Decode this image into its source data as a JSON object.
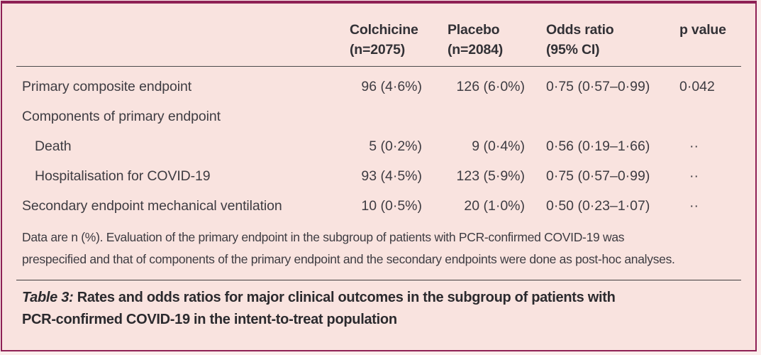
{
  "colors": {
    "card_background": "#f9e3df",
    "page_background": "#fbeeec",
    "border": "#8e2155",
    "text": "#3e3c42",
    "rule": "#4c4a4c"
  },
  "chart_data": {
    "type": "table",
    "title": "Table 3: Rates and odds ratios for major clinical outcomes in the subgroup of patients with PCR-confirmed COVID-19 in the intent-to-treat population",
    "columns": [
      "",
      "Colchicine (n=2075)",
      "Placebo (n=2084)",
      "Odds ratio (95% CI)",
      "p value"
    ],
    "rows": [
      [
        "Primary composite endpoint",
        "96 (4·6%)",
        "126 (6·0%)",
        "0·75 (0·57–0·99)",
        "0·042"
      ],
      [
        "Components of primary endpoint",
        "",
        "",
        "",
        ""
      ],
      [
        "Death",
        "5 (0·2%)",
        "9 (0·4%)",
        "0·56 (0·19–1·66)",
        "··"
      ],
      [
        "Hospitalisation for COVID-19",
        "93 (4·5%)",
        "123 (5·9%)",
        "0·75 (0·57–0·99)",
        "··"
      ],
      [
        "Secondary endpoint mechanical ventilation",
        "10 (0·5%)",
        "20 (1·0%)",
        "0·50 (0·23–1·07)",
        "··"
      ]
    ]
  },
  "table": {
    "headers": {
      "colchicine": {
        "name": "Colchicine",
        "sub": "(n=2075)"
      },
      "placebo": {
        "name": "Placebo",
        "sub": "(n=2084)"
      },
      "odds_ratio": {
        "name": "Odds ratio",
        "sub": "(95% CI)"
      },
      "p_value": {
        "name": "p value",
        "sub": ""
      }
    },
    "rows": [
      {
        "label": "Primary composite endpoint",
        "colchicine": "96 (4·6%)",
        "placebo": "126 (6·0%)",
        "odds_ratio": "0·75 (0·57–0·99)",
        "p_value": "0·042"
      },
      {
        "label": "Components of primary endpoint",
        "colchicine": "",
        "placebo": "",
        "odds_ratio": "",
        "p_value": ""
      },
      {
        "label": "Death",
        "colchicine": "5 (0·2%)",
        "placebo": "9 (0·4%)",
        "odds_ratio": "0·56 (0·19–1·66)",
        "p_value": "··"
      },
      {
        "label": "Hospitalisation for COVID-19",
        "colchicine": "93 (4·5%)",
        "placebo": "123 (5·9%)",
        "odds_ratio": "0·75 (0·57–0·99)",
        "p_value": "··"
      },
      {
        "label": "Secondary endpoint mechanical ventilation",
        "colchicine": "10 (0·5%)",
        "placebo": "20 (1·0%)",
        "odds_ratio": "0·50 (0·23–1·07)",
        "p_value": "··"
      }
    ],
    "footnote": "Data are n (%). Evaluation of the primary endpoint in the subgroup of patients with PCR-confirmed COVID-19 was prespecified and that of components of the primary endpoint and the secondary endpoints were done as post-hoc analyses.",
    "caption_label": "Table 3:",
    "caption_text": " Rates and odds ratios for major clinical outcomes in the subgroup of patients with PCR-confirmed COVID-19 in the intent-to-treat population"
  }
}
